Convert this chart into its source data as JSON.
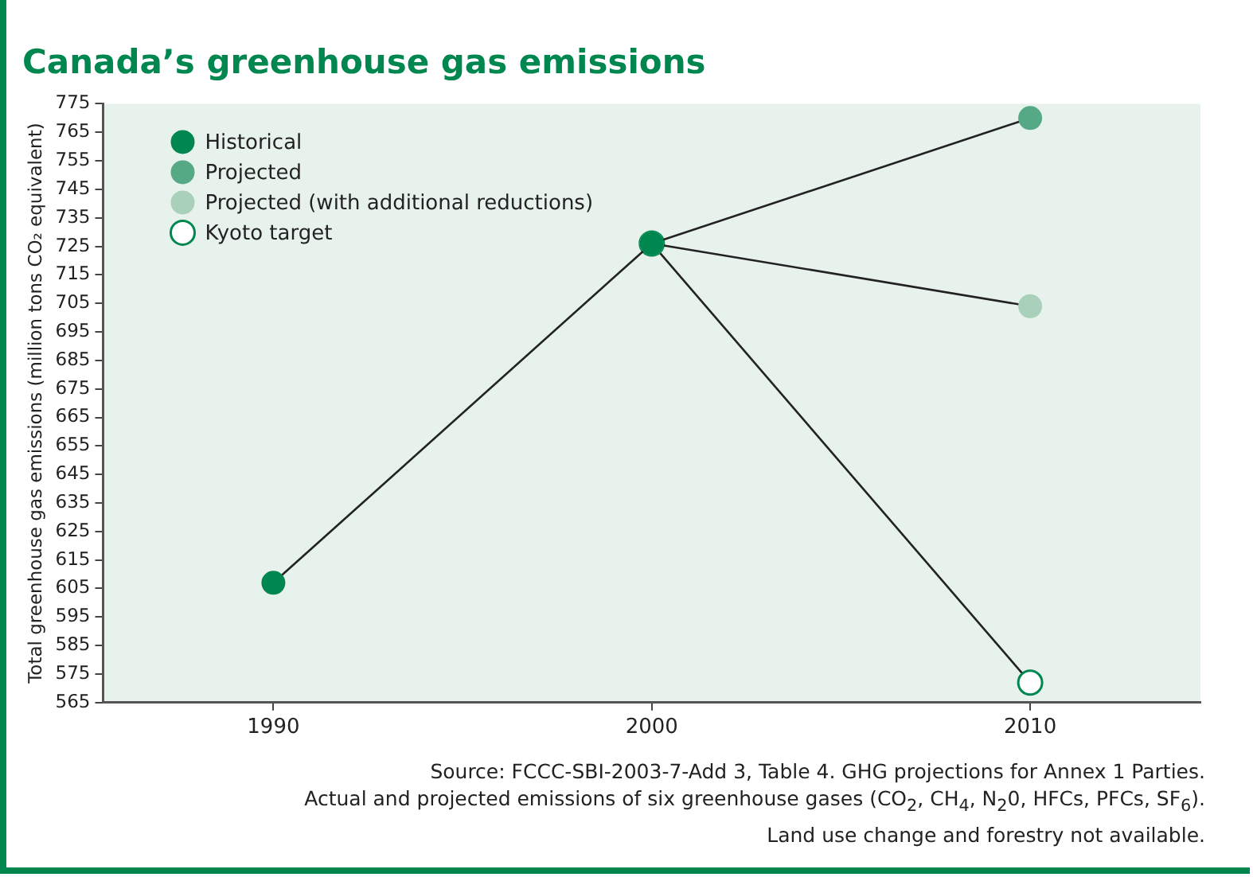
{
  "chart_data": {
    "type": "line",
    "title": "Canada’s greenhouse gas emissions",
    "ylabel": "Total greenhouse gas emissions (million tons CO₂ equivalent)",
    "xlim": [
      1985.5,
      2014.5
    ],
    "xticks": [
      1990,
      2000,
      2010
    ],
    "ylim": [
      565,
      775
    ],
    "yticks": [
      565,
      575,
      585,
      595,
      605,
      615,
      625,
      635,
      645,
      655,
      665,
      675,
      685,
      695,
      705,
      715,
      725,
      735,
      745,
      755,
      765,
      775
    ],
    "grid": false,
    "legend": "top left",
    "marker": "circle",
    "series": [
      {
        "name": "Historical",
        "color": "#00874f",
        "x": [
          1990,
          2000
        ],
        "values": [
          607,
          726
        ]
      },
      {
        "name": "Projected",
        "color": "#55a985",
        "x": [
          2000,
          2010
        ],
        "values": [
          726,
          770
        ]
      },
      {
        "name": "Projected (with additional reductions)",
        "color": "#a8d0bb",
        "x": [
          2000,
          2010
        ],
        "values": [
          726,
          704
        ]
      },
      {
        "name": "Kyoto target",
        "color": "#00874f",
        "marker": "circle-open",
        "x": [
          2000,
          2010
        ],
        "values": [
          726,
          572
        ]
      }
    ],
    "annotations": [
      "Source: FCCC-SBI-2003-7-Add 3, Table 4. GHG projections for Annex 1 Parties.",
      "Actual and projected emissions of six greenhouse gases (CO$_{2}$, CH$_{4}$, N$_{2}$0, HFCs, PFCs, SF$_{6}$).",
      "Land use change and forestry not available."
    ]
  }
}
